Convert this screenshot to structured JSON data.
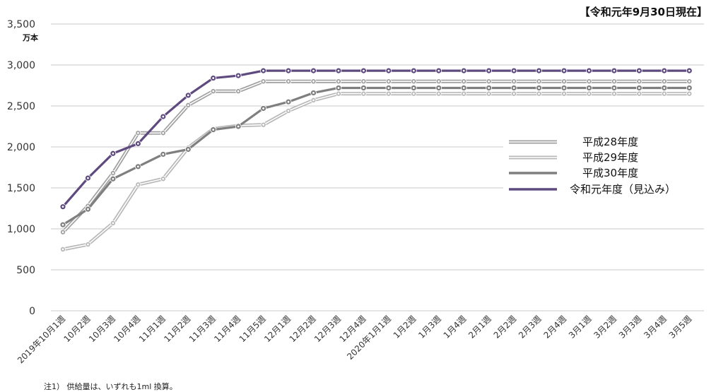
{
  "status_date": "【令和元年9月30日現在】",
  "unit_label": "万本",
  "footnote": "注1） 供給量は、いずれも1ml 換算。",
  "colors": {
    "grid": "#c8c8c8",
    "h28": "#a0a0a0",
    "h29": "#b8b8b8",
    "h30": "#7f7f7f",
    "r1": "#5e4a7e"
  },
  "chart_data": {
    "type": "line",
    "title": "",
    "xlabel": "",
    "ylabel": "万本",
    "ylim": [
      0,
      3500
    ],
    "yticks": [
      0,
      500,
      1000,
      1500,
      2000,
      2500,
      3000,
      3500
    ],
    "ytick_labels": [
      "0",
      "500",
      "1,000",
      "1,500",
      "2,000",
      "2,500",
      "3,000",
      "3,500"
    ],
    "grid": true,
    "legend_position": "right",
    "categories": [
      "2019年10月1週",
      "10月2週",
      "10月3週",
      "10月4週",
      "11月1週",
      "11月2週",
      "11月3週",
      "11月4週",
      "11月5週",
      "12月1週",
      "12月2週",
      "12月3週",
      "12月4週",
      "2020年1月1週",
      "1月2週",
      "1月3週",
      "1月4週",
      "2月1週",
      "2月2週",
      "2月3週",
      "2月4週",
      "3月1週",
      "3月2週",
      "3月3週",
      "3月4週",
      "3月5週"
    ],
    "series": [
      {
        "name": "平成28年度",
        "style": "double",
        "color_key": "h28",
        "values": [
          960,
          1280,
          1680,
          2170,
          2170,
          2510,
          2680,
          2680,
          2800,
          2800,
          2800,
          2800,
          2800,
          2800,
          2800,
          2800,
          2800,
          2800,
          2800,
          2800,
          2800,
          2800,
          2800,
          2800,
          2800,
          2800
        ]
      },
      {
        "name": "平成29年度",
        "style": "double",
        "color_key": "h29",
        "values": [
          750,
          810,
          1070,
          1540,
          1610,
          1990,
          2220,
          2260,
          2270,
          2440,
          2570,
          2650,
          2650,
          2650,
          2650,
          2650,
          2650,
          2650,
          2650,
          2650,
          2650,
          2650,
          2650,
          2650,
          2650,
          2650
        ]
      },
      {
        "name": "平成30年度",
        "style": "thick",
        "color_key": "h30",
        "values": [
          1050,
          1240,
          1610,
          1760,
          1910,
          1970,
          2210,
          2250,
          2470,
          2550,
          2660,
          2720,
          2720,
          2720,
          2720,
          2720,
          2720,
          2720,
          2720,
          2720,
          2720,
          2720,
          2720,
          2720,
          2720,
          2720
        ]
      },
      {
        "name": "令和元年度（見込み）",
        "style": "thick",
        "color_key": "r1",
        "values": [
          1270,
          1620,
          1920,
          2040,
          2370,
          2630,
          2840,
          2870,
          2930,
          2930,
          2930,
          2930,
          2930,
          2930,
          2930,
          2930,
          2930,
          2930,
          2930,
          2930,
          2930,
          2930,
          2930,
          2930,
          2930,
          2930
        ]
      }
    ]
  }
}
